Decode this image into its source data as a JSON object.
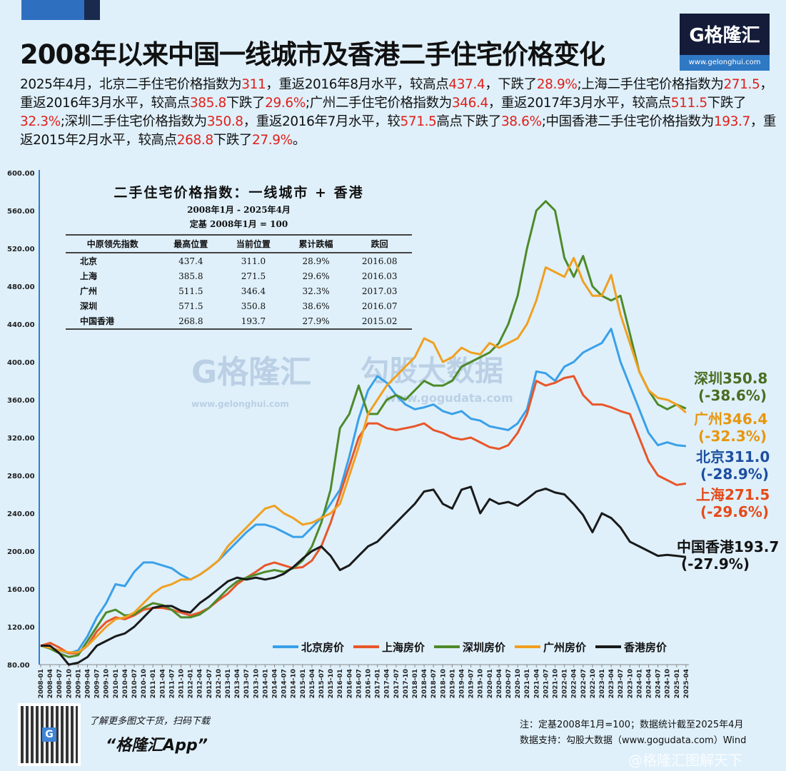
{
  "title": "2008年以来中国一线城市及香港二手住宅价格变化",
  "logo": {
    "name": "G格隆汇",
    "url": "www.gelonghui.com"
  },
  "summary_segments": [
    {
      "text": "2025年4月，北京二手住宅价格指数为",
      "hl": false
    },
    {
      "text": "311",
      "hl": true
    },
    {
      "text": "，重返2016年8月水平，较高点",
      "hl": false
    },
    {
      "text": "437.4",
      "hl": true
    },
    {
      "text": "，下跌了",
      "hl": false
    },
    {
      "text": "28.9%",
      "hl": true
    },
    {
      "text": ";上海二手住宅价格指数为",
      "hl": false
    },
    {
      "text": "271.5",
      "hl": true
    },
    {
      "text": "，重返2016年3月水平，较高点",
      "hl": false
    },
    {
      "text": "385.8",
      "hl": true
    },
    {
      "text": "下跌了",
      "hl": false
    },
    {
      "text": "29.6%",
      "hl": true
    },
    {
      "text": ";广州二手住宅价格指数为",
      "hl": false
    },
    {
      "text": "346.4",
      "hl": true
    },
    {
      "text": "，重返2017年3月水平，较高点",
      "hl": false
    },
    {
      "text": "511.5",
      "hl": true
    },
    {
      "text": "下跌了",
      "hl": false
    },
    {
      "text": "32.3%",
      "hl": true
    },
    {
      "text": ";深圳二手住宅价格指数为",
      "hl": false
    },
    {
      "text": "350.8",
      "hl": true
    },
    {
      "text": "，重返2016年7月水平，较",
      "hl": false
    },
    {
      "text": "571.5",
      "hl": true
    },
    {
      "text": "高点下跌了",
      "hl": false
    },
    {
      "text": "38.6%",
      "hl": true
    },
    {
      "text": ";中国香港二手住宅价格指数为",
      "hl": false
    },
    {
      "text": "193.7",
      "hl": true
    },
    {
      "text": "，重返2015年2月水平，较高点",
      "hl": false
    },
    {
      "text": "268.8",
      "hl": true
    },
    {
      "text": "下跌了",
      "hl": false
    },
    {
      "text": "27.9%",
      "hl": true
    },
    {
      "text": "。",
      "hl": false
    }
  ],
  "inset": {
    "title": "二手住宅价格指数：一线城市 + 香港",
    "subtitle1": "2008年1月 - 2025年4月",
    "subtitle2": "定基 2008年1月 = 100",
    "headers": [
      "中原领先指数",
      "最高位置",
      "当前位置",
      "累计跌幅",
      "跌回"
    ],
    "rows": [
      [
        "北京",
        "437.4",
        "311.0",
        "28.9%",
        "2016.08"
      ],
      [
        "上海",
        "385.8",
        "271.5",
        "29.6%",
        "2016.03"
      ],
      [
        "广州",
        "511.5",
        "346.4",
        "32.3%",
        "2017.03"
      ],
      [
        "深圳",
        "571.5",
        "350.8",
        "38.6%",
        "2016.07"
      ],
      [
        "中国香港",
        "268.8",
        "193.7",
        "27.9%",
        "2015.02"
      ]
    ]
  },
  "watermark": {
    "logo": "G格隆汇",
    "url1": "www.gelonghui.com",
    "brand": "勾股大数据",
    "url2": "www.gogudata.com"
  },
  "end_labels": [
    {
      "name": "深圳350.8",
      "pct": "(-38.6%)",
      "color": "#4a6e22"
    },
    {
      "name": "广州346.4",
      "pct": "(-32.3%)",
      "color": "#e8960e"
    },
    {
      "name": "北京311.0",
      "pct": "(-28.9%)",
      "color": "#1d4fa0"
    },
    {
      "name": "上海271.5",
      "pct": "(-29.6%)",
      "color": "#e64a19"
    },
    {
      "name": "中国香港193.7",
      "pct": "(-27.9%)",
      "color": "#111111"
    }
  ],
  "chart_data": {
    "type": "line",
    "ylim": [
      80,
      600
    ],
    "yticks": [
      "80.00",
      "120.00",
      "160.00",
      "200.00",
      "240.00",
      "280.00",
      "320.00",
      "360.00",
      "400.00",
      "440.00",
      "480.00",
      "520.00",
      "560.00",
      "600.00"
    ],
    "x": [
      "2008-01",
      "2008-04",
      "2008-07",
      "2008-10",
      "2009-01",
      "2009-04",
      "2009-07",
      "2009-10",
      "2010-01",
      "2010-04",
      "2010-07",
      "2010-10",
      "2011-01",
      "2011-04",
      "2011-07",
      "2011-10",
      "2012-01",
      "2012-04",
      "2012-07",
      "2012-10",
      "2013-01",
      "2013-04",
      "2013-07",
      "2013-10",
      "2014-01",
      "2014-04",
      "2014-07",
      "2014-10",
      "2015-01",
      "2015-04",
      "2015-07",
      "2015-10",
      "2016-01",
      "2016-04",
      "2016-07",
      "2016-10",
      "2017-01",
      "2017-04",
      "2017-07",
      "2017-10",
      "2018-01",
      "2018-04",
      "2018-07",
      "2018-10",
      "2019-01",
      "2019-04",
      "2019-07",
      "2019-10",
      "2020-01",
      "2020-04",
      "2020-07",
      "2020-10",
      "2021-01",
      "2021-04",
      "2021-07",
      "2021-10",
      "2022-01",
      "2022-04",
      "2022-07",
      "2022-10",
      "2023-01",
      "2023-04",
      "2023-07",
      "2023-10",
      "2024-01",
      "2024-04",
      "2024-07",
      "2024-10",
      "2025-01",
      "2025-04"
    ],
    "legend_position": "bottom-right",
    "series": [
      {
        "name": "北京房价",
        "color": "#3aa0e8",
        "values": [
          100,
          98,
          95,
          92,
          95,
          110,
          130,
          145,
          165,
          163,
          178,
          188,
          188,
          185,
          182,
          175,
          170,
          175,
          182,
          190,
          200,
          210,
          220,
          228,
          228,
          225,
          220,
          215,
          215,
          225,
          235,
          250,
          265,
          300,
          340,
          370,
          385,
          378,
          365,
          355,
          350,
          352,
          355,
          348,
          345,
          348,
          340,
          338,
          332,
          330,
          328,
          335,
          350,
          390,
          388,
          380,
          395,
          400,
          410,
          415,
          420,
          435,
          400,
          375,
          350,
          325,
          312,
          315,
          312,
          311
        ]
      },
      {
        "name": "上海房价",
        "color": "#e8562a",
        "values": [
          100,
          103,
          98,
          92,
          92,
          100,
          115,
          125,
          130,
          128,
          132,
          138,
          140,
          140,
          138,
          135,
          132,
          135,
          140,
          148,
          155,
          165,
          172,
          178,
          185,
          188,
          185,
          182,
          183,
          190,
          205,
          230,
          260,
          290,
          320,
          335,
          335,
          330,
          328,
          330,
          332,
          335,
          328,
          325,
          320,
          318,
          320,
          315,
          310,
          308,
          312,
          325,
          345,
          380,
          375,
          378,
          383,
          385,
          365,
          355,
          355,
          352,
          348,
          345,
          320,
          295,
          280,
          275,
          270,
          271.5
        ]
      },
      {
        "name": "深圳房价",
        "color": "#4e8a2a",
        "values": [
          100,
          97,
          92,
          88,
          90,
          105,
          120,
          135,
          138,
          132,
          133,
          140,
          145,
          143,
          138,
          130,
          130,
          133,
          140,
          150,
          160,
          168,
          172,
          175,
          178,
          180,
          178,
          182,
          190,
          205,
          230,
          265,
          330,
          345,
          375,
          345,
          345,
          360,
          365,
          360,
          370,
          380,
          375,
          375,
          380,
          395,
          400,
          405,
          410,
          420,
          440,
          470,
          520,
          560,
          570,
          560,
          510,
          490,
          512,
          480,
          470,
          465,
          470,
          430,
          390,
          370,
          355,
          350,
          355,
          350.8
        ]
      },
      {
        "name": "广州房价",
        "color": "#f0a020",
        "values": [
          100,
          98,
          95,
          93,
          93,
          100,
          110,
          120,
          128,
          130,
          135,
          145,
          155,
          162,
          165,
          170,
          170,
          175,
          182,
          190,
          205,
          215,
          225,
          235,
          245,
          248,
          240,
          235,
          228,
          230,
          235,
          240,
          250,
          280,
          310,
          345,
          360,
          375,
          385,
          395,
          405,
          425,
          420,
          400,
          405,
          415,
          410,
          408,
          420,
          415,
          420,
          425,
          440,
          465,
          500,
          495,
          490,
          510,
          485,
          470,
          470,
          492,
          450,
          420,
          390,
          370,
          362,
          360,
          355,
          346.4
        ]
      },
      {
        "name": "香港房价",
        "color": "#1a1a1a",
        "values": [
          100,
          100,
          92,
          80,
          82,
          88,
          100,
          105,
          110,
          113,
          120,
          130,
          140,
          142,
          142,
          137,
          135,
          145,
          152,
          160,
          168,
          172,
          170,
          172,
          170,
          172,
          176,
          183,
          192,
          200,
          205,
          195,
          180,
          185,
          195,
          205,
          210,
          220,
          230,
          240,
          250,
          263,
          265,
          250,
          245,
          265,
          268,
          240,
          255,
          250,
          252,
          248,
          255,
          263,
          266,
          262,
          260,
          250,
          238,
          220,
          240,
          235,
          225,
          210,
          205,
          200,
          195,
          196,
          195,
          193.7
        ]
      }
    ]
  },
  "footer": {
    "promo": "了解更多图文干货，扫码下载",
    "app": "“格隆汇App”",
    "note": "注：定基2008年1月=100；数据统计截至2025年4月",
    "source": "数据支持：勾股大数据（www.gogudata.com）Wind",
    "weibo": "@格隆汇图解天下",
    "qr_badge": "G"
  }
}
